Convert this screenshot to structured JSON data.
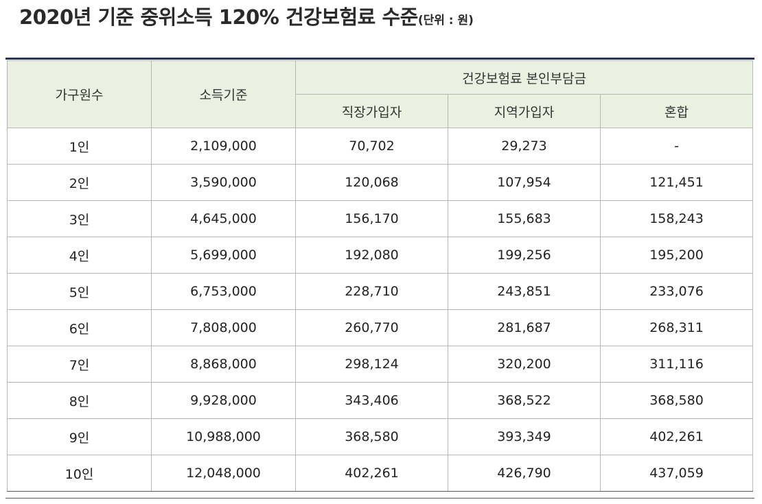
{
  "title": {
    "main": "2020년 기준 중위소득 120% 건강보험료 수준",
    "unit": "(단위 : 원)"
  },
  "table": {
    "headers": {
      "household": "가구원수",
      "income": "소득기준",
      "premium_group": "건강보험료 본인부담금",
      "employee": "직장가입자",
      "regional": "지역가입자",
      "mixed": "혼합"
    },
    "rows": [
      [
        "1인",
        "2,109,000",
        "70,702",
        "29,273",
        "-"
      ],
      [
        "2인",
        "3,590,000",
        "120,068",
        "107,954",
        "121,451"
      ],
      [
        "3인",
        "4,645,000",
        "156,170",
        "155,683",
        "158,243"
      ],
      [
        "4인",
        "5,699,000",
        "192,080",
        "199,256",
        "195,200"
      ],
      [
        "5인",
        "6,753,000",
        "228,710",
        "243,851",
        "233,076"
      ],
      [
        "6인",
        "7,808,000",
        "260,770",
        "281,687",
        "268,311"
      ],
      [
        "7인",
        "8,868,000",
        "298,124",
        "320,200",
        "311,116"
      ],
      [
        "8인",
        "9,928,000",
        "343,406",
        "368,522",
        "368,580"
      ],
      [
        "9인",
        "10,988,000",
        "368,580",
        "393,349",
        "402,261"
      ],
      [
        "10인",
        "12,048,000",
        "402,261",
        "426,790",
        "437,059"
      ]
    ]
  }
}
